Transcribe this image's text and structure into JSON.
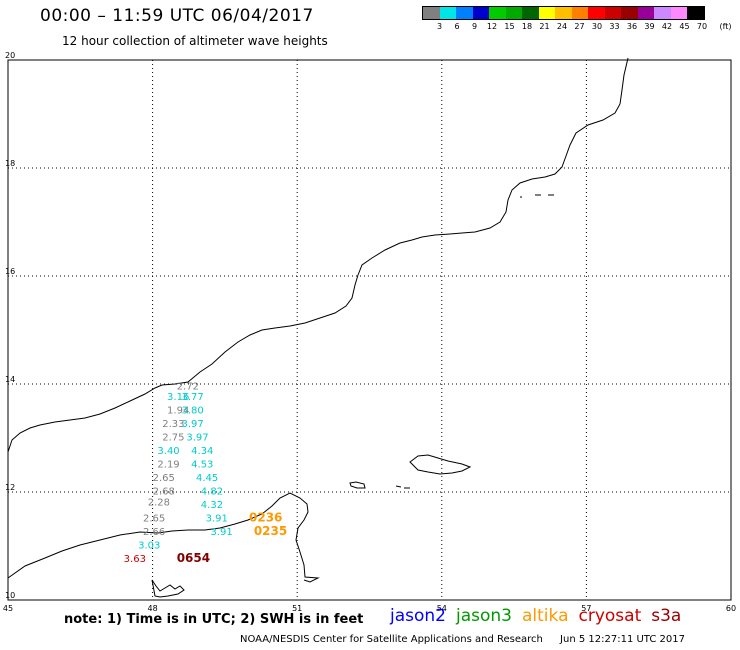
{
  "header": {
    "title": "00:00 – 11:59 UTC 06/04/2017",
    "subtitle": "12 hour collection of altimeter wave heights"
  },
  "legend": {
    "colors": [
      "#808080",
      "#00e5e5",
      "#0080ff",
      "#0000cc",
      "#00cc00",
      "#00aa00",
      "#006600",
      "#ffff00",
      "#ffbf00",
      "#ff8000",
      "#ff0000",
      "#cc0000",
      "#990000",
      "#990099",
      "#cc88ff",
      "#ff88ff",
      "#000000"
    ],
    "labels": [
      "3",
      "6",
      "9",
      "12",
      "15",
      "18",
      "21",
      "24",
      "27",
      "30",
      "33",
      "36",
      "39",
      "42",
      "45",
      "70",
      "(ft)"
    ]
  },
  "map": {
    "lon_range": [
      45,
      60
    ],
    "lat_range": [
      10,
      20
    ],
    "lon_ticks": [
      "45",
      "48",
      "51",
      "54",
      "57",
      "60"
    ],
    "lat_ticks": [
      "20",
      "18",
      "16",
      "14",
      "12",
      "10"
    ],
    "observations": [
      {
        "value": "2.72",
        "lon": 48.5,
        "lat": 13.9,
        "color": "#808080"
      },
      {
        "value": "3.16",
        "lon": 48.3,
        "lat": 13.7,
        "color": "#00cccc"
      },
      {
        "value": "3.77",
        "lon": 48.6,
        "lat": 13.7,
        "color": "#00cccc"
      },
      {
        "value": "1.94",
        "lon": 48.3,
        "lat": 13.45,
        "color": "#808080"
      },
      {
        "value": "3.80",
        "lon": 48.6,
        "lat": 13.45,
        "color": "#00cccc"
      },
      {
        "value": "2.33",
        "lon": 48.2,
        "lat": 13.2,
        "color": "#808080"
      },
      {
        "value": "3.97",
        "lon": 48.6,
        "lat": 13.2,
        "color": "#00cccc"
      },
      {
        "value": "2.75",
        "lon": 48.2,
        "lat": 12.95,
        "color": "#808080"
      },
      {
        "value": "3.97",
        "lon": 48.7,
        "lat": 12.95,
        "color": "#00cccc"
      },
      {
        "value": "3.40",
        "lon": 48.1,
        "lat": 12.7,
        "color": "#00cccc"
      },
      {
        "value": "4.34",
        "lon": 48.8,
        "lat": 12.7,
        "color": "#00cccc"
      },
      {
        "value": "2.19",
        "lon": 48.1,
        "lat": 12.45,
        "color": "#808080"
      },
      {
        "value": "4.53",
        "lon": 48.8,
        "lat": 12.45,
        "color": "#00cccc"
      },
      {
        "value": "2.65",
        "lon": 48.0,
        "lat": 12.2,
        "color": "#808080"
      },
      {
        "value": "4.45",
        "lon": 48.9,
        "lat": 12.2,
        "color": "#00cccc"
      },
      {
        "value": "2.68",
        "lon": 48.0,
        "lat": 11.95,
        "color": "#808080"
      },
      {
        "value": "4.82",
        "lon": 49.0,
        "lat": 11.95,
        "color": "#00cccc"
      },
      {
        "value": "2.28",
        "lon": 47.9,
        "lat": 11.75,
        "color": "#808080"
      },
      {
        "value": "4.32",
        "lon": 49.0,
        "lat": 11.7,
        "color": "#00cccc"
      },
      {
        "value": "2.65",
        "lon": 47.8,
        "lat": 11.45,
        "color": "#808080"
      },
      {
        "value": "3.91",
        "lon": 49.1,
        "lat": 11.45,
        "color": "#00cccc"
      },
      {
        "value": "2.66",
        "lon": 47.8,
        "lat": 11.2,
        "color": "#808080"
      },
      {
        "value": "3.91",
        "lon": 49.2,
        "lat": 11.2,
        "color": "#00cccc"
      },
      {
        "value": "3.03",
        "lon": 47.7,
        "lat": 10.95,
        "color": "#00cccc"
      },
      {
        "value": "3.63",
        "lon": 47.4,
        "lat": 10.7,
        "color": "#cc0000"
      }
    ],
    "time_labels": [
      {
        "value": "0236",
        "lon": 50.0,
        "lat": 11.45,
        "color": "#ff9900"
      },
      {
        "value": "0235",
        "lon": 50.1,
        "lat": 11.2,
        "color": "#ff9900"
      },
      {
        "value": "0654",
        "lon": 48.5,
        "lat": 10.7,
        "color": "#800000"
      }
    ]
  },
  "footer": {
    "note": "note:  1) Time is in UTC;  2) SWH is in feet",
    "satellites": [
      {
        "name": "jason2",
        "color": "#0000ff"
      },
      {
        "name": "jason3",
        "color": "#009900"
      },
      {
        "name": "altika",
        "color": "#ff9900"
      },
      {
        "name": "cryosat",
        "color": "#cc0000"
      },
      {
        "name": "s3a",
        "color": "#990000"
      }
    ],
    "credit": "NOAA/NESDIS Center for Satellite Applications and Research",
    "timestamp": "Jun  5 12:27:11 UTC 2017"
  }
}
